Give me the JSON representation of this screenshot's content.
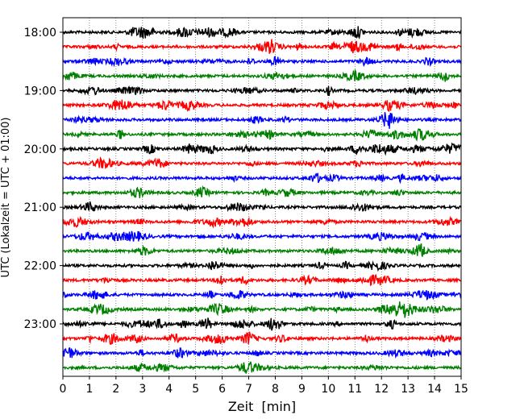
{
  "chart_data": {
    "type": "line",
    "title": "",
    "xlabel": "Zeit  [min]",
    "ylabel": "UTC (Lokalzeit = UTC + 01:00)",
    "xlim": [
      0,
      15
    ],
    "x_ticks": [
      "0",
      "1",
      "2",
      "3",
      "4",
      "5",
      "6",
      "7",
      "8",
      "9",
      "10",
      "11",
      "12",
      "13",
      "14",
      "15"
    ],
    "y_ticks": [
      {
        "label": "18:00",
        "trace": 0
      },
      {
        "label": "19:00",
        "trace": 4
      },
      {
        "label": "20:00",
        "trace": 8
      },
      {
        "label": "21:00",
        "trace": 12
      },
      {
        "label": "22:00",
        "trace": 16
      },
      {
        "label": "23:00",
        "trace": 20
      }
    ],
    "grid": {
      "vertical_dotted": true
    },
    "color_cycle": [
      "#000000",
      "#ff0000",
      "#0000ff",
      "#008000"
    ],
    "traces": [
      {
        "start": "18:00"
      },
      {
        "start": "18:15"
      },
      {
        "start": "18:30"
      },
      {
        "start": "18:45"
      },
      {
        "start": "19:00"
      },
      {
        "start": "19:15"
      },
      {
        "start": "19:30"
      },
      {
        "start": "19:45"
      },
      {
        "start": "20:00"
      },
      {
        "start": "20:15"
      },
      {
        "start": "20:30"
      },
      {
        "start": "20:45"
      },
      {
        "start": "21:00"
      },
      {
        "start": "21:15"
      },
      {
        "start": "21:30"
      },
      {
        "start": "21:45"
      },
      {
        "start": "22:00"
      },
      {
        "start": "22:15"
      },
      {
        "start": "22:30"
      },
      {
        "start": "22:45"
      },
      {
        "start": "23:00"
      },
      {
        "start": "23:15"
      },
      {
        "start": "23:30"
      },
      {
        "start": "23:45"
      }
    ]
  }
}
